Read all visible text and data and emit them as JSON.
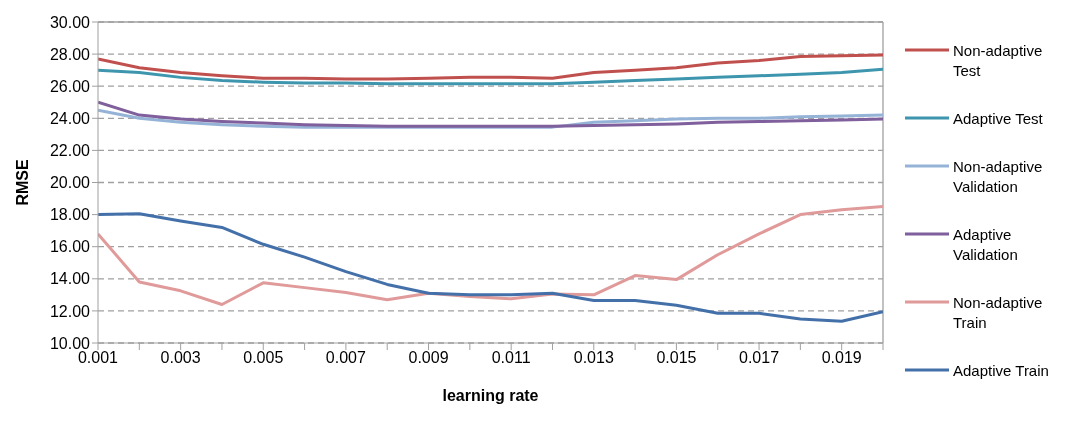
{
  "chart_data": {
    "type": "line",
    "xlabel": "learning rate",
    "ylabel": "RMSE",
    "x": [
      0.001,
      0.002,
      0.003,
      0.004,
      0.005,
      0.006,
      0.007,
      0.008,
      0.009,
      0.01,
      0.011,
      0.012,
      0.013,
      0.014,
      0.015,
      0.016,
      0.017,
      0.018,
      0.019,
      0.02
    ],
    "xlim": [
      0.001,
      0.02
    ],
    "xticks": [
      {
        "value": 0.001,
        "label": "0.001"
      },
      {
        "value": 0.002,
        "label": null
      },
      {
        "value": 0.003,
        "label": "0.003"
      },
      {
        "value": 0.004,
        "label": null
      },
      {
        "value": 0.005,
        "label": "0.005"
      },
      {
        "value": 0.006,
        "label": null
      },
      {
        "value": 0.007,
        "label": "0.007"
      },
      {
        "value": 0.008,
        "label": null
      },
      {
        "value": 0.009,
        "label": "0.009"
      },
      {
        "value": 0.01,
        "label": null
      },
      {
        "value": 0.011,
        "label": "0.011"
      },
      {
        "value": 0.012,
        "label": null
      },
      {
        "value": 0.013,
        "label": "0.013"
      },
      {
        "value": 0.014,
        "label": null
      },
      {
        "value": 0.015,
        "label": "0.015"
      },
      {
        "value": 0.016,
        "label": null
      },
      {
        "value": 0.017,
        "label": "0.017"
      },
      {
        "value": 0.018,
        "label": null
      },
      {
        "value": 0.019,
        "label": "0.019"
      },
      {
        "value": 0.02,
        "label": null
      }
    ],
    "ylim": [
      10,
      30
    ],
    "yticks": [
      {
        "value": 10,
        "label": "10.00"
      },
      {
        "value": 12,
        "label": "12.00"
      },
      {
        "value": 14,
        "label": "14.00"
      },
      {
        "value": 16,
        "label": "16.00"
      },
      {
        "value": 18,
        "label": "18.00"
      },
      {
        "value": 20,
        "label": "20.00"
      },
      {
        "value": 22,
        "label": "22.00"
      },
      {
        "value": 24,
        "label": "24.00"
      },
      {
        "value": 26,
        "label": "26.00"
      },
      {
        "value": 28,
        "label": "28.00"
      },
      {
        "value": 30,
        "label": "30.00"
      }
    ],
    "grid": "y",
    "legend": "right",
    "marker": "none",
    "line_style": "solid",
    "series": [
      {
        "name": "Non-adaptive Test",
        "color": "#c0504d",
        "values": [
          27.7,
          27.15,
          26.85,
          26.65,
          26.5,
          26.5,
          26.45,
          26.45,
          26.5,
          26.55,
          26.55,
          26.5,
          26.85,
          27.0,
          27.15,
          27.45,
          27.6,
          27.85,
          27.9,
          27.95
        ]
      },
      {
        "name": "Adaptive Test",
        "color": "#3d96ae",
        "values": [
          27.0,
          26.85,
          26.55,
          26.35,
          26.25,
          26.2,
          26.2,
          26.15,
          26.15,
          26.15,
          26.15,
          26.15,
          26.25,
          26.35,
          26.45,
          26.55,
          26.65,
          26.75,
          26.85,
          27.05
        ]
      },
      {
        "name": "Non-adaptive Validation",
        "color": "#95b3d7",
        "values": [
          24.5,
          24.0,
          23.75,
          23.6,
          23.5,
          23.45,
          23.45,
          23.45,
          23.45,
          23.45,
          23.45,
          23.45,
          23.75,
          23.85,
          23.95,
          24.0,
          24.0,
          24.1,
          24.15,
          24.2
        ]
      },
      {
        "name": "Adaptive Validation",
        "color": "#7f5f9c",
        "values": [
          25.0,
          24.2,
          23.95,
          23.8,
          23.7,
          23.6,
          23.55,
          23.5,
          23.5,
          23.5,
          23.5,
          23.5,
          23.55,
          23.6,
          23.65,
          23.75,
          23.8,
          23.85,
          23.9,
          23.95
        ]
      },
      {
        "name": "Non-adaptive Train",
        "color": "#e09a9a",
        "values": [
          16.8,
          13.8,
          13.25,
          12.4,
          13.75,
          13.45,
          13.15,
          12.7,
          13.1,
          12.9,
          12.75,
          13.05,
          13.0,
          14.2,
          13.95,
          15.5,
          16.8,
          18.0,
          18.3,
          18.5
        ]
      },
      {
        "name": "Adaptive Train",
        "color": "#4470aa",
        "values": [
          18.0,
          18.05,
          17.6,
          17.2,
          16.15,
          15.35,
          14.45,
          13.65,
          13.1,
          13.0,
          13.0,
          13.1,
          12.65,
          12.65,
          12.35,
          11.85,
          11.85,
          11.5,
          11.35,
          11.95
        ]
      }
    ]
  }
}
